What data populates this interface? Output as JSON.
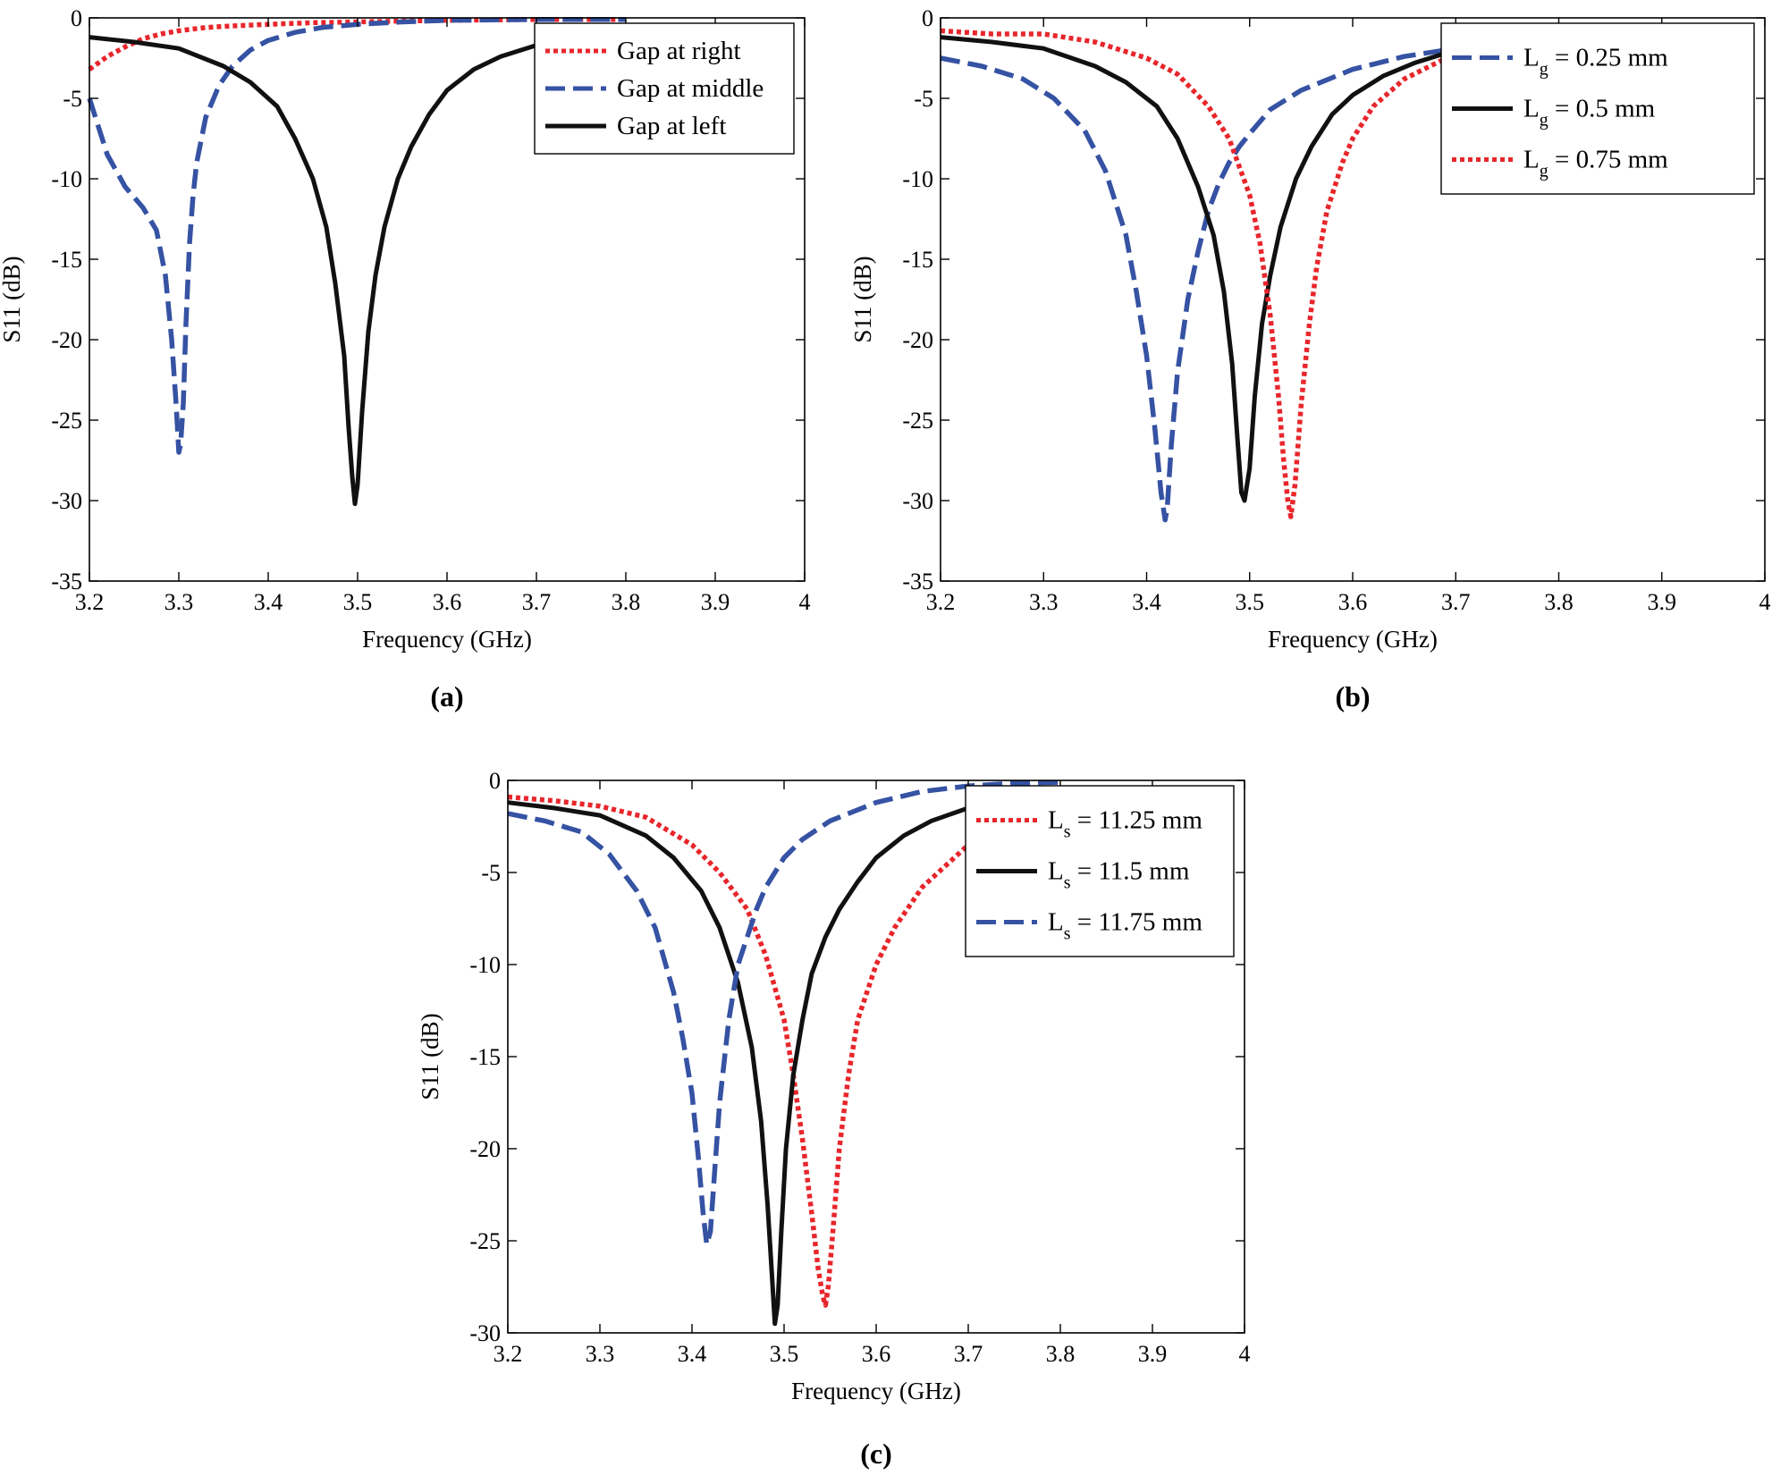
{
  "chart_data": [
    {
      "type": "line",
      "panel_label": "(a)",
      "xlabel": "Frequency (GHz)",
      "ylabel": "S11 (dB)",
      "xlim": [
        3.2,
        4.0
      ],
      "ylim": [
        -35,
        0
      ],
      "xticks": [
        "3.2",
        "3.3",
        "3.4",
        "3.5",
        "3.6",
        "3.7",
        "3.8",
        "3.9",
        "4"
      ],
      "yticks": [
        "0",
        "-5",
        "-10",
        "-15",
        "-20",
        "-25",
        "-30",
        "-35"
      ],
      "grid": false,
      "legend_position": "top-right",
      "series": [
        {
          "name": "Gap at right",
          "color": "#e8262b",
          "style": "dotted",
          "x": [
            3.2,
            3.22,
            3.24,
            3.26,
            3.28,
            3.3,
            3.33,
            3.36,
            3.4,
            3.45,
            3.5,
            3.55,
            3.6,
            3.65,
            3.7,
            3.75,
            3.8
          ],
          "y": [
            -3.2,
            -2.4,
            -1.8,
            -1.3,
            -1.0,
            -0.8,
            -0.6,
            -0.5,
            -0.4,
            -0.3,
            -0.25,
            -0.2,
            -0.15,
            -0.12,
            -0.1,
            -0.1,
            -0.1
          ]
        },
        {
          "name": "Gap at middle",
          "color": "#3552a3",
          "style": "dashed",
          "x": [
            3.2,
            3.22,
            3.24,
            3.26,
            3.275,
            3.285,
            3.292,
            3.297,
            3.3,
            3.302,
            3.305,
            3.308,
            3.312,
            3.316,
            3.32,
            3.33,
            3.345,
            3.36,
            3.38,
            3.4,
            3.43,
            3.46,
            3.5,
            3.55,
            3.6,
            3.7,
            3.8
          ],
          "y": [
            -5.0,
            -8.5,
            -10.5,
            -11.8,
            -13.2,
            -16.0,
            -20.0,
            -24.0,
            -27.0,
            -26.5,
            -24.0,
            -19.0,
            -14.0,
            -11.0,
            -9.0,
            -6.2,
            -4.2,
            -3.0,
            -2.0,
            -1.4,
            -0.9,
            -0.6,
            -0.4,
            -0.25,
            -0.15,
            -0.1,
            -0.1
          ]
        },
        {
          "name": "Gap at left",
          "color": "#111111",
          "style": "solid",
          "x": [
            3.2,
            3.25,
            3.3,
            3.35,
            3.38,
            3.41,
            3.43,
            3.45,
            3.465,
            3.475,
            3.485,
            3.49,
            3.494,
            3.497,
            3.5,
            3.505,
            3.512,
            3.52,
            3.53,
            3.545,
            3.56,
            3.58,
            3.6,
            3.63,
            3.66,
            3.7,
            3.75,
            3.8
          ],
          "y": [
            -1.2,
            -1.5,
            -1.9,
            -3.0,
            -4.0,
            -5.5,
            -7.5,
            -10.0,
            -13.0,
            -16.5,
            -21.0,
            -25.5,
            -28.5,
            -30.2,
            -29.0,
            -24.5,
            -19.5,
            -16.0,
            -13.0,
            -10.0,
            -8.0,
            -6.0,
            -4.5,
            -3.2,
            -2.4,
            -1.7,
            -1.2,
            -1.0
          ]
        }
      ]
    },
    {
      "type": "line",
      "panel_label": "(b)",
      "xlabel": "Frequency (GHz)",
      "ylabel": "S11 (dB)",
      "xlim": [
        3.2,
        4.0
      ],
      "ylim": [
        -35,
        0
      ],
      "xticks": [
        "3.2",
        "3.3",
        "3.4",
        "3.5",
        "3.6",
        "3.7",
        "3.8",
        "3.9",
        "4"
      ],
      "yticks": [
        "0",
        "-5",
        "-10",
        "-15",
        "-20",
        "-25",
        "-30",
        "-35"
      ],
      "grid": false,
      "legend_position": "top-right",
      "series": [
        {
          "name_main": "L",
          "name_sub": "g",
          "name_rest": " = 0.25 mm",
          "color": "#3552a3",
          "style": "dashed",
          "x": [
            3.2,
            3.24,
            3.28,
            3.31,
            3.34,
            3.36,
            3.38,
            3.39,
            3.4,
            3.408,
            3.414,
            3.418,
            3.42,
            3.424,
            3.43,
            3.44,
            3.45,
            3.46,
            3.47,
            3.48,
            3.49,
            3.5,
            3.52,
            3.55,
            3.6,
            3.65,
            3.7
          ],
          "y": [
            -2.5,
            -3.0,
            -3.8,
            -5.0,
            -7.0,
            -9.5,
            -13.5,
            -17.0,
            -21.0,
            -25.5,
            -29.5,
            -31.2,
            -30.5,
            -26.5,
            -22.0,
            -17.5,
            -14.5,
            -12.0,
            -10.3,
            -9.0,
            -8.0,
            -7.2,
            -5.7,
            -4.5,
            -3.2,
            -2.4,
            -1.9
          ]
        },
        {
          "name_main": "L",
          "name_sub": "g",
          "name_rest": " = 0.5 mm",
          "color": "#111111",
          "style": "solid",
          "x": [
            3.2,
            3.25,
            3.3,
            3.35,
            3.38,
            3.41,
            3.43,
            3.45,
            3.465,
            3.475,
            3.483,
            3.488,
            3.492,
            3.495,
            3.5,
            3.505,
            3.512,
            3.52,
            3.53,
            3.545,
            3.56,
            3.58,
            3.6,
            3.63,
            3.66,
            3.7
          ],
          "y": [
            -1.2,
            -1.5,
            -1.9,
            -3.0,
            -4.0,
            -5.5,
            -7.5,
            -10.5,
            -13.5,
            -17.0,
            -21.5,
            -26.0,
            -29.5,
            -30.0,
            -28.0,
            -23.5,
            -19.0,
            -16.0,
            -13.0,
            -10.0,
            -8.0,
            -6.0,
            -4.8,
            -3.6,
            -2.8,
            -2.0
          ]
        },
        {
          "name_main": "L",
          "name_sub": "g",
          "name_rest": " = 0.75 mm",
          "color": "#e8262b",
          "style": "dotted",
          "x": [
            3.2,
            3.25,
            3.3,
            3.35,
            3.4,
            3.43,
            3.46,
            3.48,
            3.5,
            3.51,
            3.52,
            3.528,
            3.533,
            3.537,
            3.54,
            3.544,
            3.55,
            3.558,
            3.565,
            3.575,
            3.59,
            3.6,
            3.62,
            3.65,
            3.7
          ],
          "y": [
            -0.8,
            -1.0,
            -1.0,
            -1.5,
            -2.5,
            -3.5,
            -5.5,
            -7.5,
            -11.0,
            -14.0,
            -18.5,
            -23.5,
            -27.5,
            -30.0,
            -31.0,
            -29.0,
            -24.0,
            -19.0,
            -15.5,
            -12.0,
            -9.0,
            -7.5,
            -5.5,
            -3.8,
            -2.2
          ]
        }
      ]
    },
    {
      "type": "line",
      "panel_label": "(c)",
      "xlabel": "Frequency (GHz)",
      "ylabel": "S11 (dB)",
      "xlim": [
        3.2,
        4.0
      ],
      "ylim": [
        -30,
        0
      ],
      "xticks": [
        "3.2",
        "3.3",
        "3.4",
        "3.5",
        "3.6",
        "3.7",
        "3.8",
        "3.9",
        "4"
      ],
      "yticks": [
        "0",
        "-5",
        "-10",
        "-15",
        "-20",
        "-25",
        "-30"
      ],
      "grid": false,
      "legend_position": "top-right",
      "series": [
        {
          "name_main": "L",
          "name_sub": "s",
          "name_rest": " = 11.25 mm",
          "color": "#e8262b",
          "style": "dotted",
          "x": [
            3.2,
            3.25,
            3.3,
            3.35,
            3.4,
            3.43,
            3.46,
            3.48,
            3.5,
            3.51,
            3.52,
            3.53,
            3.537,
            3.542,
            3.545,
            3.548,
            3.553,
            3.56,
            3.57,
            3.58,
            3.6,
            3.62,
            3.65,
            3.7,
            3.75,
            3.8
          ],
          "y": [
            -0.9,
            -1.1,
            -1.4,
            -2.0,
            -3.5,
            -5.0,
            -7.0,
            -9.5,
            -13.0,
            -16.0,
            -19.5,
            -23.5,
            -26.5,
            -28.0,
            -28.5,
            -27.5,
            -24.5,
            -20.0,
            -16.0,
            -13.0,
            -10.0,
            -8.0,
            -5.8,
            -3.5,
            -1.8,
            -1.2
          ]
        },
        {
          "name_main": "L",
          "name_sub": "s",
          "name_rest": " = 11.5 mm",
          "color": "#111111",
          "style": "solid",
          "x": [
            3.2,
            3.25,
            3.3,
            3.35,
            3.38,
            3.41,
            3.43,
            3.45,
            3.465,
            3.475,
            3.482,
            3.487,
            3.49,
            3.493,
            3.497,
            3.502,
            3.51,
            3.52,
            3.53,
            3.545,
            3.56,
            3.58,
            3.6,
            3.63,
            3.66,
            3.7,
            3.75,
            3.8
          ],
          "y": [
            -1.2,
            -1.5,
            -1.9,
            -3.0,
            -4.2,
            -6.0,
            -8.0,
            -11.0,
            -14.5,
            -18.5,
            -23.0,
            -27.0,
            -29.5,
            -28.5,
            -24.5,
            -20.0,
            -16.0,
            -13.0,
            -10.5,
            -8.5,
            -7.0,
            -5.5,
            -4.2,
            -3.0,
            -2.2,
            -1.5,
            -0.8,
            -0.4
          ]
        },
        {
          "name_main": "L",
          "name_sub": "s",
          "name_rest": " = 11.75 mm",
          "color": "#3552a3",
          "style": "dashed",
          "x": [
            3.2,
            3.24,
            3.28,
            3.31,
            3.34,
            3.36,
            3.38,
            3.39,
            3.4,
            3.407,
            3.412,
            3.416,
            3.42,
            3.425,
            3.43,
            3.44,
            3.45,
            3.46,
            3.47,
            3.48,
            3.49,
            3.5,
            3.52,
            3.55,
            3.6,
            3.65,
            3.7,
            3.75,
            3.8
          ],
          "y": [
            -1.8,
            -2.2,
            -2.8,
            -4.0,
            -6.0,
            -8.0,
            -11.5,
            -14.0,
            -17.0,
            -20.5,
            -23.5,
            -25.2,
            -24.5,
            -21.0,
            -17.5,
            -13.0,
            -10.0,
            -8.5,
            -7.0,
            -5.8,
            -5.0,
            -4.2,
            -3.2,
            -2.2,
            -1.2,
            -0.6,
            -0.3,
            -0.15,
            -0.1
          ]
        }
      ]
    }
  ]
}
